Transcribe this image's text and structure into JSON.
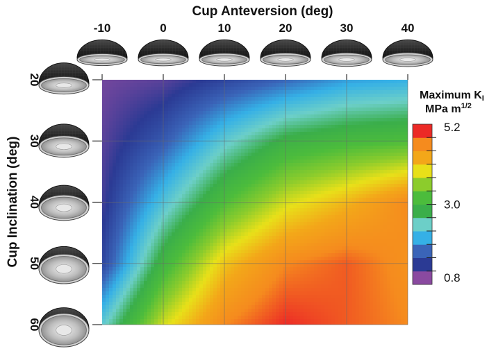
{
  "chart_data": {
    "type": "heatmap",
    "title": "",
    "xlabel": "Cup Anteversion (deg)",
    "ylabel": "Cup Inclination (deg)",
    "x": [
      -10,
      0,
      10,
      20,
      30,
      40
    ],
    "y": [
      20,
      30,
      40,
      50,
      60
    ],
    "xlim": [
      -10,
      40
    ],
    "ylim": [
      20,
      60
    ],
    "values": [
      [
        0.9,
        1.0,
        1.3,
        1.6,
        1.9,
        2.0
      ],
      [
        1.0,
        1.5,
        2.3,
        2.9,
        3.1,
        3.2
      ],
      [
        1.1,
        2.2,
        3.2,
        3.9,
        4.3,
        4.8
      ],
      [
        1.3,
        3.0,
        4.2,
        4.8,
        5.0,
        4.7
      ],
      [
        2.3,
        3.9,
        4.8,
        5.2,
        5.0,
        4.8
      ]
    ],
    "colorbar": {
      "title_line1": "Maximum K",
      "title_sub": "I",
      "title_line2_main": "MPa m",
      "title_line2_sup": "1/2",
      "min": 0.8,
      "max": 5.2,
      "tick_labels": [
        "5.2",
        "3.0",
        "0.8"
      ],
      "tick_values": [
        5.2,
        3.0,
        0.8
      ],
      "colors": [
        "#8a4aa0",
        "#2b3a94",
        "#3a64b8",
        "#35b0e6",
        "#6ccfc8",
        "#3aae4a",
        "#4cbc3c",
        "#8ccc2c",
        "#e8e019",
        "#f3a719",
        "#f58b1e",
        "#ec2a26"
      ]
    },
    "grid": true
  },
  "thumbnails": {
    "top": [
      "cup-anteversion-neg10",
      "cup-anteversion-0",
      "cup-anteversion-10",
      "cup-anteversion-20",
      "cup-anteversion-30",
      "cup-anteversion-40"
    ],
    "left": [
      "cup-inclination-20",
      "cup-inclination-30",
      "cup-inclination-40",
      "cup-inclination-50",
      "cup-inclination-60"
    ]
  }
}
